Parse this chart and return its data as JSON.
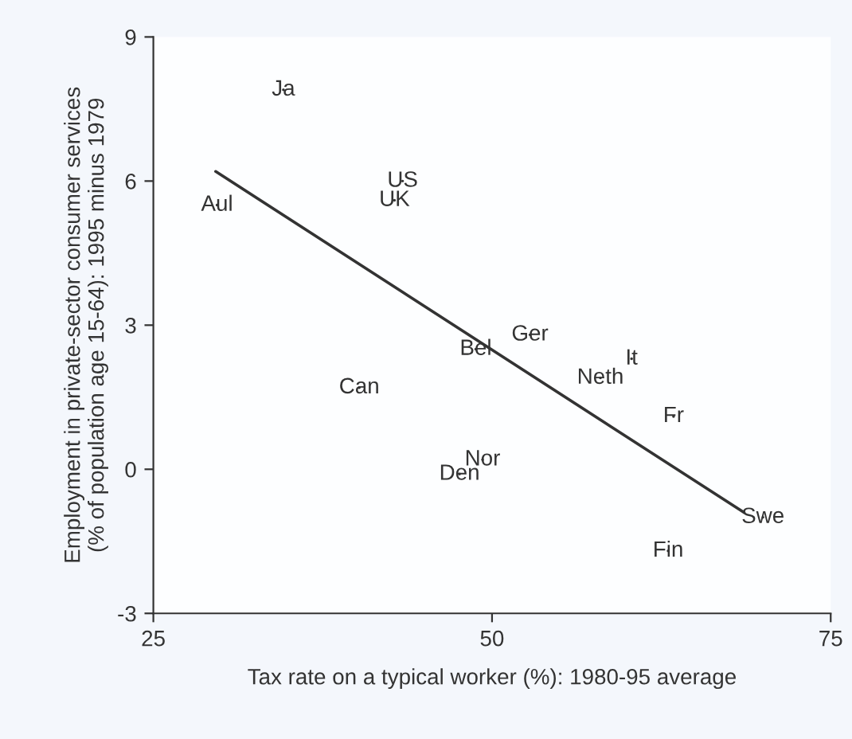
{
  "chart_data": {
    "type": "scatter",
    "xlabel": "Tax rate on a typical worker (%): 1980-95 average",
    "ylabel": "Employment in private-sector consumer services\n(% of population age 15-64): 1995 minus 1979",
    "xlim": [
      25,
      75
    ],
    "xticks": [
      25,
      50,
      75
    ],
    "ylim": [
      -3,
      9
    ],
    "yticks": [
      -3,
      0,
      3,
      6,
      9
    ],
    "grid": false,
    "legend": false,
    "series": [
      {
        "marker": "none",
        "color": "#333333",
        "x": [
          34.6,
          29.7,
          43.4,
          42.8,
          48.8,
          52.8,
          40.2,
          60.3,
          58.0,
          63.4,
          49.3,
          47.6,
          70.0,
          63.0
        ],
        "values": [
          7.9,
          5.5,
          6.0,
          5.6,
          2.5,
          2.8,
          1.7,
          2.3,
          1.9,
          1.1,
          0.2,
          -0.1,
          -1.0,
          -1.7
        ],
        "value_labels": [
          "Ja",
          "Aul",
          "US",
          "UK",
          "Bel",
          "Ger",
          "Can",
          "It",
          "Neth",
          "Fr",
          "Nor",
          "Den",
          "Swe",
          "Fin"
        ]
      },
      {
        "type": "line",
        "color": "#333333",
        "x": [
          29.6,
          68.6
        ],
        "values": [
          6.2,
          -0.9
        ]
      }
    ]
  }
}
